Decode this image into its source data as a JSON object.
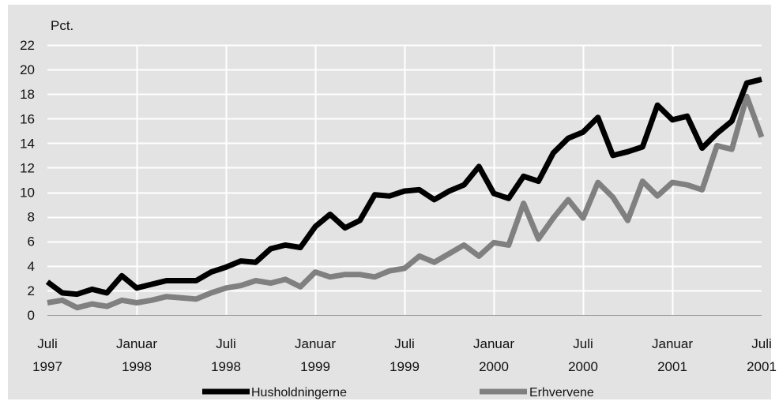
{
  "chart_data": {
    "type": "line",
    "title": "",
    "xlabel": "",
    "ylabel": "Pct.",
    "ylim": [
      0,
      22
    ],
    "yticks": [
      0,
      2,
      4,
      6,
      8,
      10,
      12,
      14,
      16,
      18,
      20,
      22
    ],
    "x_range": [
      "1997-07",
      "2001-07"
    ],
    "x": [
      "1997-07",
      "1997-08",
      "1997-09",
      "1997-10",
      "1997-11",
      "1997-12",
      "1998-01",
      "1998-02",
      "1998-03",
      "1998-04",
      "1998-05",
      "1998-06",
      "1998-07",
      "1998-08",
      "1998-09",
      "1998-10",
      "1998-11",
      "1998-12",
      "1999-01",
      "1999-02",
      "1999-03",
      "1999-04",
      "1999-05",
      "1999-06",
      "1999-07",
      "1999-08",
      "1999-09",
      "1999-10",
      "1999-11",
      "1999-12",
      "2000-01",
      "2000-02",
      "2000-03",
      "2000-04",
      "2000-05",
      "2000-06",
      "2000-07",
      "2000-08",
      "2000-09",
      "2000-10",
      "2000-11",
      "2000-12",
      "2001-01",
      "2001-02",
      "2001-03",
      "2001-04",
      "2001-05",
      "2001-06",
      "2001-07"
    ],
    "x_tick_labels": [
      {
        "month": "1997-07",
        "line1": "Juli",
        "line2": "1997"
      },
      {
        "month": "1998-01",
        "line1": "Januar",
        "line2": "1998"
      },
      {
        "month": "1998-07",
        "line1": "Juli",
        "line2": "1998"
      },
      {
        "month": "1999-01",
        "line1": "Januar",
        "line2": "1999"
      },
      {
        "month": "1999-07",
        "line1": "Juli",
        "line2": "1999"
      },
      {
        "month": "2000-01",
        "line1": "Januar",
        "line2": "2000"
      },
      {
        "month": "2000-07",
        "line1": "Juli",
        "line2": "2000"
      },
      {
        "month": "2001-01",
        "line1": "Januar",
        "line2": "2001"
      },
      {
        "month": "2001-07",
        "line1": "Juli",
        "line2": "2001"
      }
    ],
    "grid": true,
    "legend_position": "bottom",
    "series": [
      {
        "name": "Husholdningerne",
        "color": "#000000",
        "values": [
          2.7,
          1.8,
          1.7,
          2.1,
          1.8,
          3.2,
          2.2,
          2.5,
          2.8,
          2.8,
          2.8,
          3.5,
          3.9,
          4.4,
          4.3,
          5.4,
          5.7,
          5.5,
          7.2,
          8.2,
          7.1,
          7.7,
          9.8,
          9.7,
          10.1,
          10.2,
          9.4,
          10.1,
          10.6,
          12.1,
          9.9,
          9.5,
          11.3,
          10.9,
          13.2,
          14.4,
          14.9,
          16.1,
          13.0,
          13.3,
          13.7,
          17.1,
          15.9,
          16.2,
          13.6,
          14.8,
          15.8,
          18.9,
          19.2
        ]
      },
      {
        "name": "Erhvervene",
        "color": "#808080",
        "values": [
          1.0,
          1.2,
          0.6,
          0.9,
          0.7,
          1.2,
          1.0,
          1.2,
          1.5,
          1.4,
          1.3,
          1.8,
          2.2,
          2.4,
          2.8,
          2.6,
          2.9,
          2.3,
          3.5,
          3.1,
          3.3,
          3.3,
          3.1,
          3.6,
          3.8,
          4.8,
          4.3,
          5.0,
          5.7,
          4.8,
          5.9,
          5.7,
          9.1,
          6.2,
          7.9,
          9.4,
          7.9,
          10.8,
          9.6,
          7.7,
          10.9,
          9.7,
          10.8,
          10.6,
          10.2,
          13.8,
          13.5,
          17.8,
          14.5
        ]
      }
    ]
  }
}
